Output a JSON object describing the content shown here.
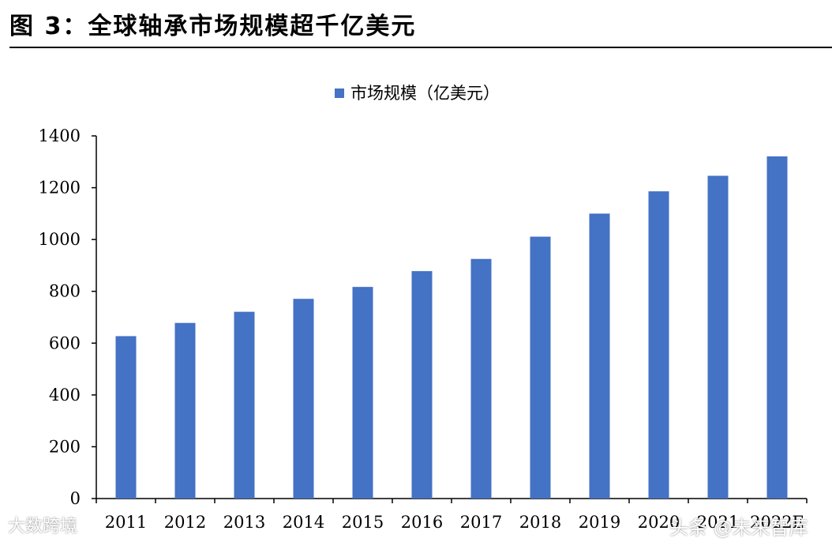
{
  "header": {
    "title": "图 3：全球轴承市场规模超千亿美元"
  },
  "chart_data": {
    "type": "bar",
    "title": "图 3：全球轴承市场规模超千亿美元",
    "categories": [
      "2011",
      "2012",
      "2013",
      "2014",
      "2015",
      "2016",
      "2017",
      "2018",
      "2019",
      "2020",
      "2021",
      "2022E"
    ],
    "series": [
      {
        "name": "市场规模（亿美元）",
        "color": "#4472C4",
        "values": [
          627,
          678,
          721,
          771,
          817,
          878,
          925,
          1011,
          1100,
          1186,
          1246,
          1321
        ]
      }
    ],
    "ylim": [
      0,
      1400
    ],
    "yticks": [
      0,
      200,
      400,
      600,
      800,
      1000,
      1200,
      1400
    ],
    "xlabel": "",
    "ylabel": "",
    "legend": "top-center",
    "grid": false
  },
  "watermarks": {
    "left": "大数跨境",
    "right": "头条 @未来智库"
  }
}
